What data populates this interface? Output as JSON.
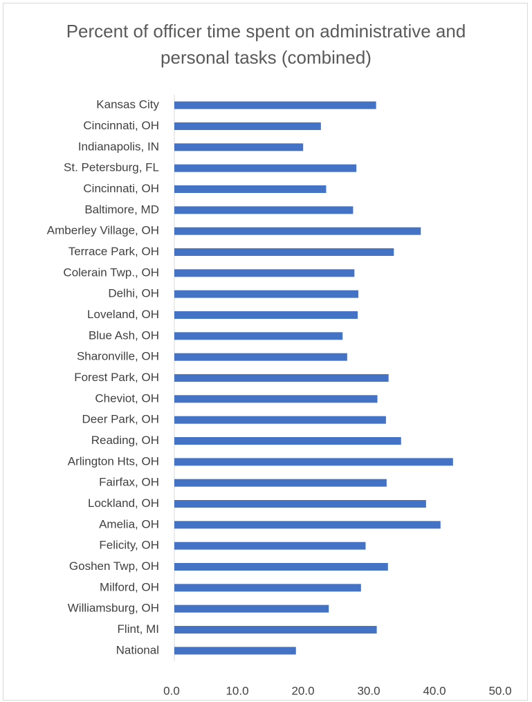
{
  "chart_data": {
    "type": "hbar",
    "title": "Percent of officer time spent on administrative and personal tasks (combined)",
    "categories": [
      "Kansas City",
      "Cincinnati, OH",
      "Indianapolis, IN",
      "St. Petersburg, FL",
      "Cincinnati, OH",
      "Baltimore, MD",
      "Amberley Village, OH",
      "Terrace Park, OH",
      "Colerain Twp., OH",
      "Delhi, OH",
      "Loveland, OH",
      "Blue Ash, OH",
      "Sharonville, OH",
      "Forest Park, OH",
      "Cheviot, OH",
      "Deer Park, OH",
      "Reading, OH",
      "Arlington Hts, OH",
      "Fairfax, OH",
      "Lockland, OH",
      "Amelia, OH",
      "Felicity, OH",
      "Goshen Twp, OH",
      "Milford, OH",
      "Williamsburg, OH",
      "Flint, MI",
      "National"
    ],
    "values": [
      30.7,
      22.3,
      19.6,
      27.7,
      23.1,
      27.2,
      37.5,
      33.4,
      27.4,
      28.0,
      27.9,
      25.6,
      26.3,
      32.6,
      30.9,
      32.2,
      34.5,
      42.4,
      32.3,
      38.3,
      40.5,
      29.1,
      32.5,
      28.4,
      23.5,
      30.8,
      18.5
    ],
    "color": "#4472c4",
    "xlim": [
      0,
      50
    ],
    "xticks": [
      {
        "value": 0,
        "label": "0.0"
      },
      {
        "value": 10,
        "label": "10.0"
      },
      {
        "value": 20,
        "label": "20.0"
      },
      {
        "value": 30,
        "label": "30.0"
      },
      {
        "value": 40,
        "label": "40.0"
      },
      {
        "value": 50,
        "label": "50.0"
      }
    ],
    "grid": false
  }
}
